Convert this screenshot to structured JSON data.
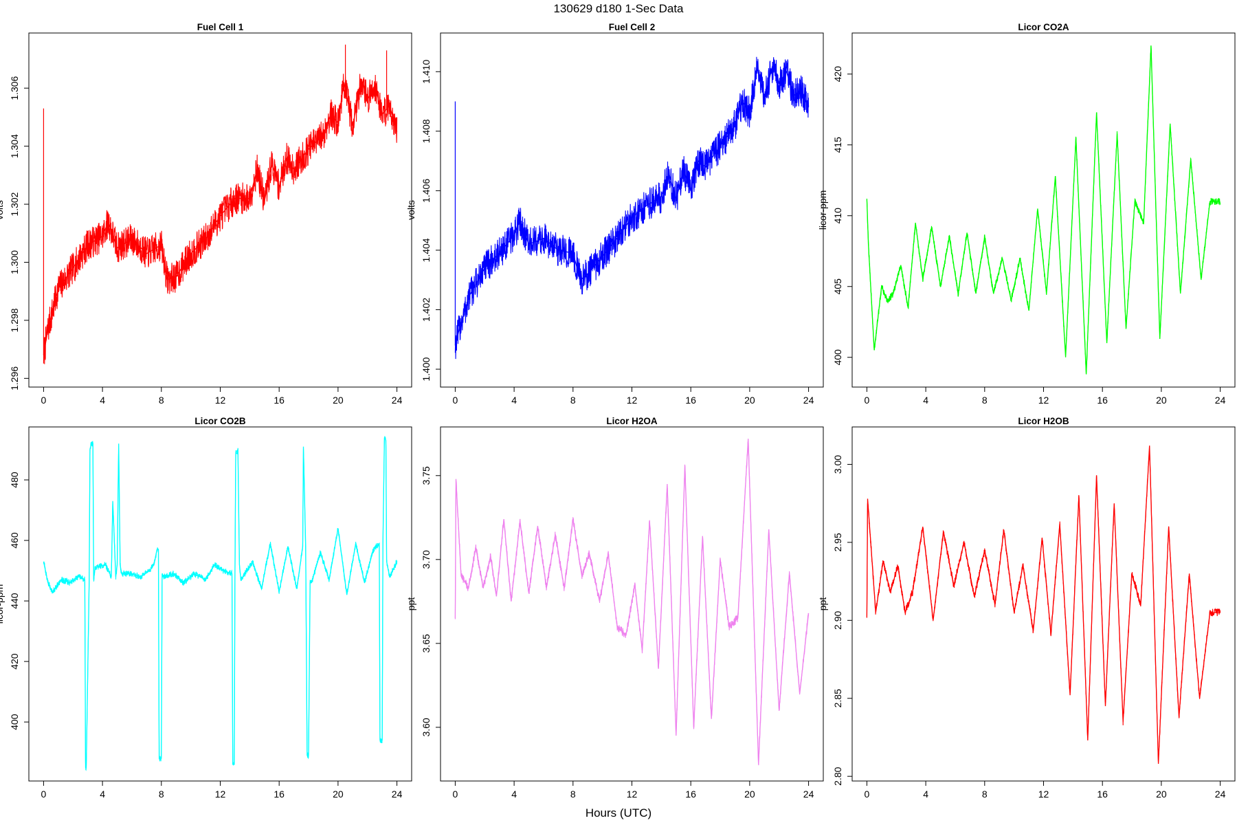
{
  "figure": {
    "title": "130629   d180   1-Sec Data",
    "xlabel": "Hours (UTC)"
  },
  "chart_data": [
    {
      "type": "line",
      "title": "Fuel Cell 1",
      "ylabel": "volts",
      "color": "#ff0000",
      "xlim": [
        -1,
        25
      ],
      "ylim": [
        1.2957,
        1.3079
      ],
      "xticks": [
        0,
        4,
        8,
        12,
        16,
        20,
        24
      ],
      "yticks": [
        1.296,
        1.298,
        1.3,
        1.302,
        1.304,
        1.306
      ],
      "ytick_labels": [
        "1.296",
        "1.298",
        "1.300",
        "1.302",
        "1.304",
        "1.306"
      ],
      "band": 0.00055,
      "series": [
        {
          "x": [
            0,
            0.3,
            1,
            2,
            3,
            4,
            4.4,
            5,
            6,
            7,
            8,
            8.4,
            9,
            10,
            11,
            12,
            13,
            14,
            14.5,
            15,
            15.5,
            16,
            16.5,
            17,
            18,
            19,
            19.5,
            20,
            20.4,
            21,
            21.6,
            22,
            22.5,
            23,
            23.5,
            24
          ],
          "y": [
            1.2968,
            1.2977,
            1.2991,
            1.2998,
            1.3006,
            1.3009,
            1.3014,
            1.3005,
            1.3008,
            1.3003,
            1.3006,
            1.2994,
            1.2995,
            1.3003,
            1.3008,
            1.3016,
            1.3022,
            1.3022,
            1.3032,
            1.3021,
            1.3034,
            1.3026,
            1.3036,
            1.3032,
            1.3039,
            1.3044,
            1.3051,
            1.3048,
            1.3062,
            1.3047,
            1.3063,
            1.3056,
            1.3061,
            1.3051,
            1.3054,
            1.3045
          ]
        }
      ],
      "spikes": [
        {
          "x": 0.0,
          "y": 1.3053
        },
        {
          "x": 20.5,
          "y": 1.3075
        },
        {
          "x": 23.3,
          "y": 1.3073
        }
      ]
    },
    {
      "type": "line",
      "title": "Fuel Cell 2",
      "ylabel": "volts",
      "color": "#0000ff",
      "xlim": [
        -1,
        25
      ],
      "ylim": [
        1.3994,
        1.4113
      ],
      "xticks": [
        0,
        4,
        8,
        12,
        16,
        20,
        24
      ],
      "yticks": [
        1.4,
        1.402,
        1.404,
        1.406,
        1.408,
        1.41
      ],
      "ytick_labels": [
        "1.400",
        "1.402",
        "1.404",
        "1.406",
        "1.408",
        "1.410"
      ],
      "band": 0.00055,
      "series": [
        {
          "x": [
            0,
            0.3,
            1,
            2,
            3,
            4,
            4.4,
            5,
            6,
            7,
            8,
            8.5,
            9,
            10,
            11,
            12,
            13,
            14,
            14.5,
            15,
            15.5,
            16,
            16.5,
            17,
            18,
            19,
            19.5,
            20,
            20.5,
            21,
            21.6,
            22,
            22.5,
            23,
            23.5,
            24
          ],
          "y": [
            1.4008,
            1.4014,
            1.4025,
            1.4034,
            1.4039,
            1.4045,
            1.405,
            1.4042,
            1.4044,
            1.404,
            1.4039,
            1.403,
            1.4032,
            1.4038,
            1.4044,
            1.4051,
            1.4055,
            1.4058,
            1.4066,
            1.4057,
            1.4067,
            1.406,
            1.407,
            1.4068,
            1.4075,
            1.4082,
            1.409,
            1.4086,
            1.4102,
            1.4091,
            1.4103,
            1.4096,
            1.41,
            1.4092,
            1.4094,
            1.4088
          ]
        }
      ],
      "spikes": [
        {
          "x": 0.0,
          "y": 1.409
        }
      ]
    },
    {
      "type": "line",
      "title": "Licor CO2A",
      "ylabel": "licor-ppm",
      "color": "#00ff00",
      "xlim": [
        -1,
        25
      ],
      "ylim": [
        397.9,
        422.9
      ],
      "xticks": [
        0,
        4,
        8,
        12,
        16,
        20,
        24
      ],
      "yticks": [
        400,
        405,
        410,
        415,
        420
      ],
      "ytick_labels": [
        "400",
        "405",
        "410",
        "415",
        "420"
      ],
      "band": 0.25,
      "series": [
        {
          "x": [
            0,
            0.1,
            0.5,
            1.0,
            1.4,
            1.8,
            2.3,
            2.8,
            3.3,
            3.8,
            4.4,
            5.0,
            5.6,
            6.2,
            6.8,
            7.4,
            8.0,
            8.6,
            9.2,
            9.8,
            10.4,
            11.0,
            11.6,
            12.2,
            12.8,
            13.5,
            14.2,
            14.9,
            15.6,
            16.3,
            17.0,
            17.6,
            18.2,
            18.8,
            19.3,
            19.9,
            20.6,
            21.3,
            22.0,
            22.7,
            23.3,
            24.0
          ],
          "y": [
            411.2,
            408,
            400.5,
            405,
            404.0,
            404.5,
            406.5,
            403.5,
            409.5,
            405.5,
            409.2,
            405.0,
            408.5,
            404.5,
            408.8,
            404.5,
            408.5,
            404.5,
            407.0,
            404.0,
            407.0,
            403.3,
            410.5,
            404.5,
            412.8,
            400.0,
            415.5,
            398.8,
            417.3,
            401.0,
            415.8,
            402.0,
            411.0,
            409.5,
            422.0,
            401.3,
            416.5,
            404.5,
            414.0,
            405.5,
            411.0,
            411.0
          ]
        }
      ]
    },
    {
      "type": "line",
      "title": "Licor CO2B",
      "ylabel": "licor-ppm",
      "color": "#00ffff",
      "xlim": [
        -1,
        25
      ],
      "ylim": [
        380.5,
        497.5
      ],
      "xticks": [
        0,
        4,
        8,
        12,
        16,
        20,
        24
      ],
      "yticks": [
        400,
        420,
        440,
        460,
        480
      ],
      "ytick_labels": [
        "400",
        "420",
        "440",
        "460",
        "480"
      ],
      "band": 1.0,
      "series": [
        {
          "x": [
            0,
            0.3,
            0.6,
            1.2,
            1.8,
            2.4,
            2.8,
            2.85,
            2.9,
            3.1,
            3.15,
            3.25,
            3.35,
            3.4,
            3.5,
            4.2,
            4.6,
            4.7,
            4.9,
            5.0,
            5.1,
            5.2,
            5.3,
            6.0,
            6.6,
            7.2,
            7.5,
            7.7,
            7.8,
            7.85,
            8.0,
            8.05,
            8.15,
            8.8,
            9.5,
            10.2,
            11.0,
            11.6,
            12.2,
            12.8,
            12.85,
            12.95,
            13.0,
            13.05,
            13.2,
            13.3,
            13.4,
            14.2,
            14.8,
            15.4,
            16.0,
            16.6,
            17.2,
            17.6,
            17.65,
            17.8,
            17.9,
            18.0,
            18.1,
            18.2,
            18.8,
            19.4,
            20.0,
            20.6,
            21.2,
            21.8,
            22.4,
            22.8,
            22.85,
            23.0,
            23.05,
            23.15,
            23.25,
            23.3,
            23.5,
            24.0
          ],
          "y": [
            453,
            446,
            443,
            447,
            446,
            448,
            447,
            385,
            385,
            447,
            490,
            492,
            492,
            447,
            451,
            452,
            448,
            473,
            448,
            452,
            492,
            452,
            449,
            449,
            448,
            450,
            452,
            457,
            457,
            388,
            388,
            449,
            448,
            449,
            446,
            449,
            447,
            452,
            450,
            449,
            386,
            386,
            449,
            489,
            490,
            452,
            447,
            453,
            444,
            459,
            443,
            458,
            444,
            458,
            491,
            458,
            389,
            389,
            446,
            446,
            456,
            447,
            464,
            442,
            459,
            446,
            457,
            459,
            394,
            394,
            459,
            494,
            493,
            453,
            448,
            453
          ]
        }
      ]
    },
    {
      "type": "line",
      "title": "Licor H2OA",
      "ylabel": "ppt",
      "color": "#ee82ee",
      "xlim": [
        -1,
        25
      ],
      "ylim": [
        3.568,
        3.779
      ],
      "xticks": [
        0,
        4,
        8,
        12,
        16,
        20,
        24
      ],
      "yticks": [
        3.6,
        3.65,
        3.7,
        3.75
      ],
      "ytick_labels": [
        "3.60",
        "3.65",
        "3.70",
        "3.75"
      ],
      "band": 0.0025,
      "series": [
        {
          "x": [
            0,
            0.05,
            0.4,
            0.9,
            1.4,
            1.9,
            2.4,
            2.8,
            3.3,
            3.8,
            4.4,
            5.0,
            5.6,
            6.2,
            6.8,
            7.4,
            8.0,
            8.6,
            9.1,
            9.8,
            10.4,
            11.0,
            11.6,
            12.2,
            12.7,
            13.2,
            13.8,
            14.4,
            15.0,
            15.6,
            16.2,
            16.8,
            17.4,
            18.0,
            18.6,
            19.2,
            19.9,
            20.6,
            21.3,
            22.0,
            22.7,
            23.4,
            24.0
          ],
          "y": [
            3.665,
            3.748,
            3.69,
            3.683,
            3.707,
            3.683,
            3.702,
            3.678,
            3.724,
            3.675,
            3.723,
            3.68,
            3.72,
            3.683,
            3.715,
            3.683,
            3.724,
            3.69,
            3.704,
            3.675,
            3.703,
            3.66,
            3.655,
            3.685,
            3.646,
            3.723,
            3.635,
            3.745,
            3.595,
            3.756,
            3.6,
            3.714,
            3.605,
            3.7,
            3.66,
            3.665,
            3.772,
            3.578,
            3.718,
            3.61,
            3.692,
            3.62,
            3.668
          ]
        }
      ]
    },
    {
      "type": "line",
      "title": "Licor H2OB",
      "ylabel": "ppt",
      "color": "#ff0000",
      "xlim": [
        -1,
        25
      ],
      "ylim": [
        2.797,
        3.024
      ],
      "xticks": [
        0,
        4,
        8,
        12,
        16,
        20,
        24
      ],
      "yticks": [
        2.8,
        2.85,
        2.9,
        2.95,
        3.0
      ],
      "ytick_labels": [
        "2.80",
        "2.85",
        "2.90",
        "2.95",
        "3.00"
      ],
      "band": 0.0025,
      "series": [
        {
          "x": [
            0,
            0.05,
            0.6,
            1.1,
            1.6,
            2.1,
            2.6,
            3.1,
            3.8,
            4.5,
            5.2,
            5.9,
            6.6,
            7.3,
            8.0,
            8.7,
            9.3,
            10.0,
            10.6,
            11.3,
            11.9,
            12.5,
            13.1,
            13.8,
            14.4,
            15.0,
            15.6,
            16.2,
            16.8,
            17.4,
            18.0,
            18.6,
            19.2,
            19.8,
            20.5,
            21.2,
            21.9,
            22.6,
            23.3,
            24.0
          ],
          "y": [
            2.902,
            2.978,
            2.905,
            2.938,
            2.918,
            2.935,
            2.905,
            2.918,
            2.96,
            2.9,
            2.957,
            2.922,
            2.95,
            2.915,
            2.945,
            2.91,
            2.958,
            2.905,
            2.935,
            2.893,
            2.953,
            2.891,
            2.962,
            2.852,
            2.98,
            2.823,
            2.993,
            2.845,
            2.975,
            2.835,
            2.93,
            2.91,
            3.012,
            2.808,
            2.96,
            2.838,
            2.93,
            2.85,
            2.905,
            2.905
          ]
        }
      ]
    }
  ]
}
